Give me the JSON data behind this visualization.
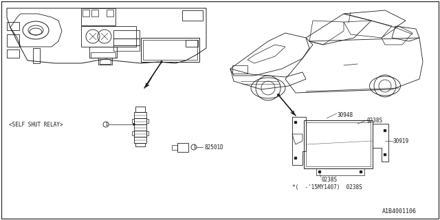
{
  "bg_color": "#ffffff",
  "line_color": "#1a1a1a",
  "text_color": "#1a1a1a",
  "part_number_bottom_right": "A1B4001106",
  "label_self_shut": "<SELF SHUT RELAY>",
  "label_82501D": "82501D",
  "label_30948": "30948",
  "label_0238S": "0238S",
  "label_30919": "30919",
  "label_note": "*(  -'15MY1407)  0238S",
  "font_size_labels": 5.5,
  "font_size_partnumber": 6.0
}
